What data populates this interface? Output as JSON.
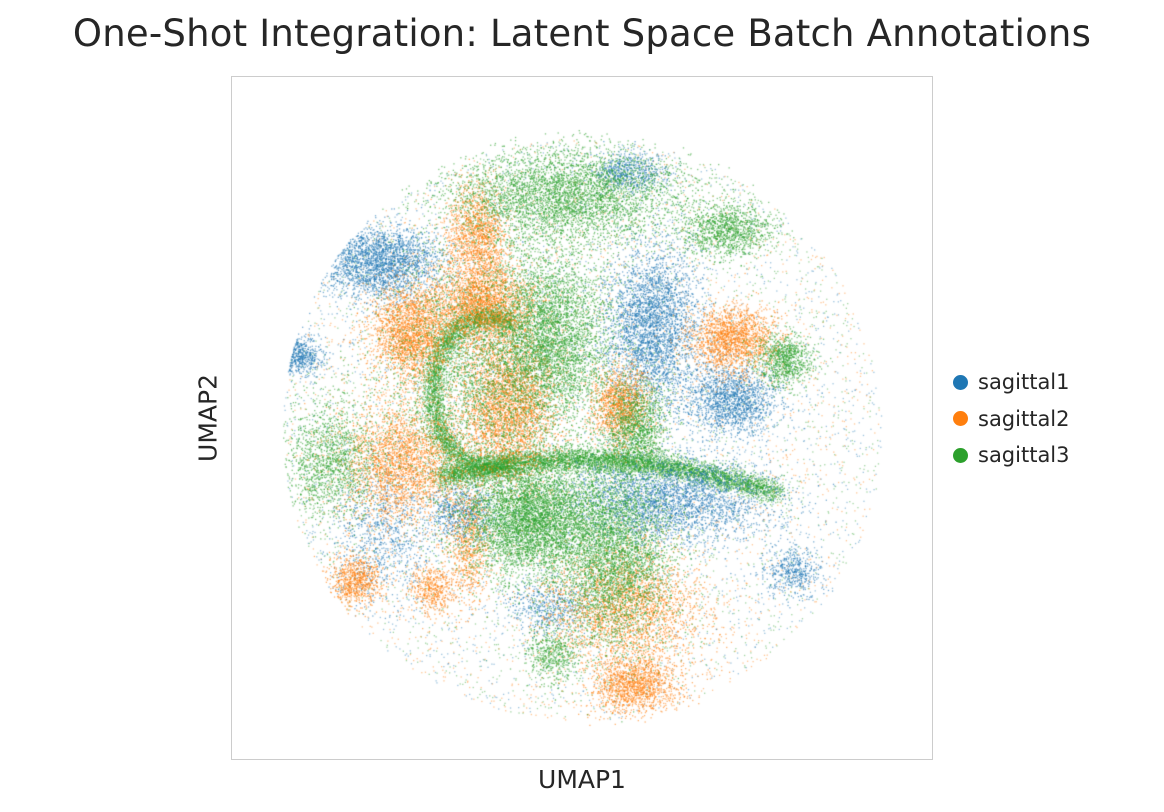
{
  "chart_data": {
    "type": "scatter",
    "title": "One-Shot Integration: Latent Space Batch Annotations",
    "xlabel": "UMAP1",
    "ylabel": "UMAP2",
    "xticks": [],
    "yticks": [],
    "grid": false,
    "legend_position": "right",
    "series": [
      {
        "name": "sagittal1",
        "color": "#1f77b4"
      },
      {
        "name": "sagittal2",
        "color": "#ff7f0e"
      },
      {
        "name": "sagittal3",
        "color": "#2ca02c"
      }
    ]
  }
}
